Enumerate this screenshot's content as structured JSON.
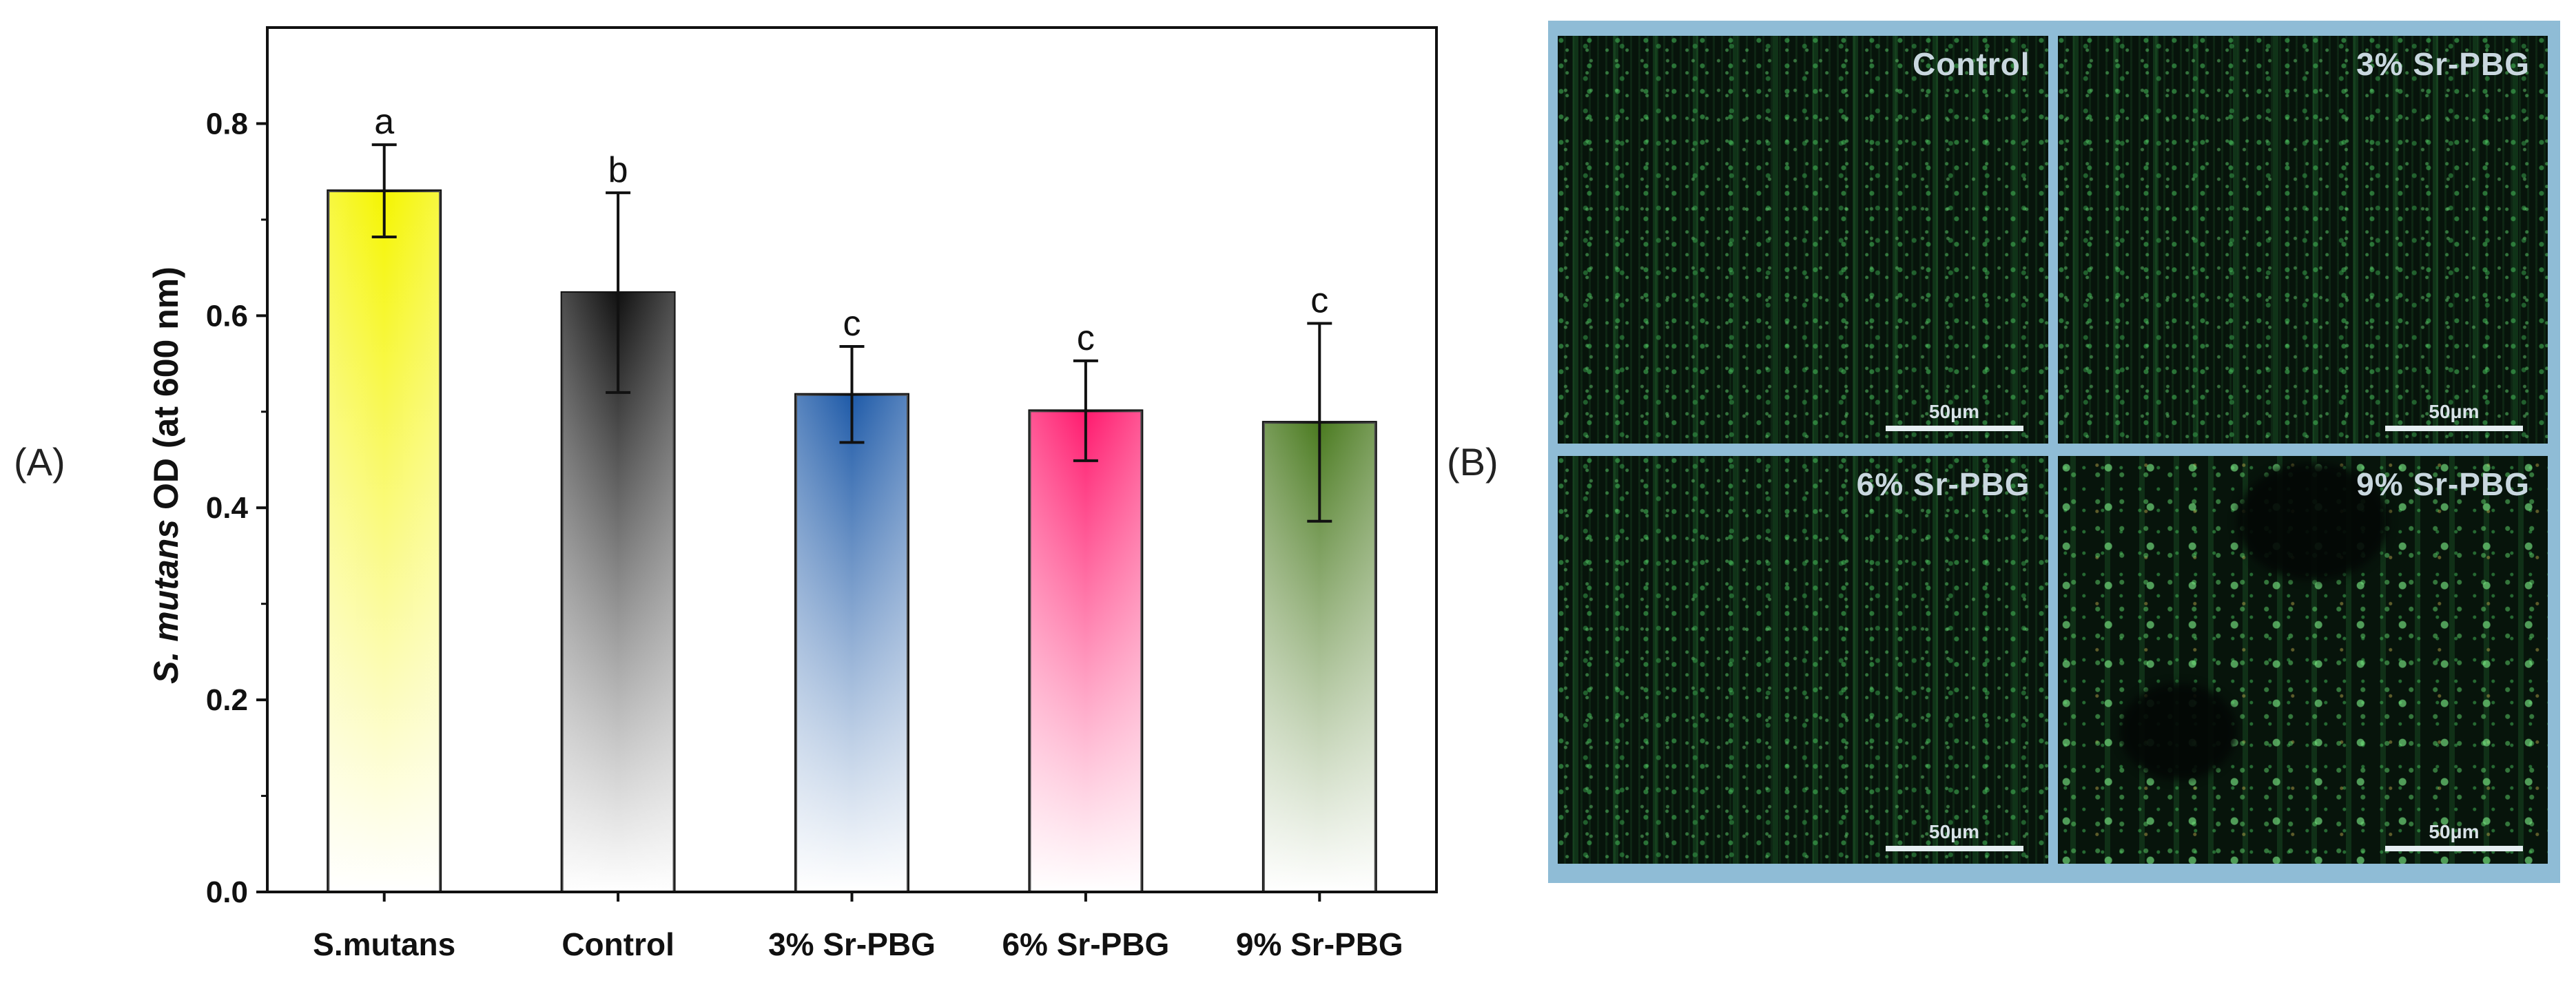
{
  "panel_a_label": "(A)",
  "panel_b_label": "(B)",
  "chart_data": {
    "type": "bar",
    "title": "",
    "ylabel_italic": "S. mutans",
    "ylabel_rest": " OD (at 600 nm)",
    "xlabel": "",
    "categories": [
      "S.mutans",
      "Control",
      "3% Sr-PBG",
      "6% Sr-PBG",
      "9% Sr-PBG"
    ],
    "values": [
      0.73,
      0.624,
      0.518,
      0.501,
      0.489
    ],
    "errors": [
      0.048,
      0.104,
      0.05,
      0.052,
      0.103
    ],
    "significance": [
      "a",
      "b",
      "c",
      "c",
      "c"
    ],
    "ylim": [
      0.0,
      0.9
    ],
    "yticks": [
      0.0,
      0.2,
      0.4,
      0.6,
      0.8
    ],
    "ytick_labels": [
      "0.0",
      "0.2",
      "0.4",
      "0.6",
      "0.8"
    ],
    "colors": [
      "#f5f500",
      "#111111",
      "#1e5aa8",
      "#ff1a6e",
      "#4a7a1f"
    ],
    "grid": false,
    "legend": "none"
  },
  "micrographs": [
    {
      "title": "Control",
      "scale": "50μm"
    },
    {
      "title": "3% Sr-PBG",
      "scale": "50μm"
    },
    {
      "title": "6% Sr-PBG",
      "scale": "50μm"
    },
    {
      "title": "9% Sr-PBG",
      "scale": "50μm"
    }
  ]
}
